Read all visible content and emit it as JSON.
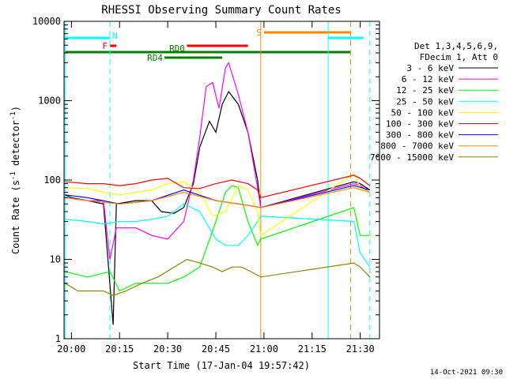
{
  "chart_data": {
    "type": "line",
    "title": "RHESSI Observing Summary Count Rates",
    "xlabel": "Start Time (17-Jan-04 19:57:42)",
    "ylabel": "Count Rate (s⁻¹ detector⁻¹)",
    "ylabel_base": "Count Rate (s",
    "ylabel_sup": "-1",
    "ylabel_mid": " detector",
    "ylabel_sup2": "-1",
    "ylabel_end": ")",
    "y_scale": "log",
    "ylim": [
      1,
      10000
    ],
    "xlim": [
      "19:57:42",
      "21:36:00"
    ],
    "x_ticks": [
      "20:00",
      "20:15",
      "20:30",
      "20:45",
      "21:00",
      "21:15",
      "21:30"
    ],
    "y_ticks": [
      "1",
      "10",
      "100",
      "1000",
      "10000"
    ],
    "legend_header": [
      "Det 1,3,4,5,6,9,",
      "FDecim 1, Att 0"
    ],
    "series": [
      {
        "name": "3 - 6 keV",
        "color": "#000000",
        "x": [
          "19:58",
          "20:00",
          "20:05",
          "20:10",
          "20:13",
          "20:14",
          "20:20",
          "20:25",
          "20:28",
          "20:32",
          "20:35",
          "20:38",
          "20:40",
          "20:43",
          "20:45",
          "20:47",
          "20:49",
          "20:52",
          "20:55",
          "20:58",
          "20:59",
          "21:28",
          "21:30",
          "21:33"
        ],
        "y": [
          65,
          60,
          55,
          50,
          1.5,
          50,
          55,
          55,
          40,
          38,
          45,
          90,
          260,
          550,
          400,
          900,
          1300,
          900,
          400,
          100,
          45,
          95,
          90,
          75
        ]
      },
      {
        "name": "6 - 12 keV",
        "color": "#ff00ff",
        "x": [
          "19:58",
          "20:05",
          "20:10",
          "20:12",
          "20:14",
          "20:20",
          "20:25",
          "20:30",
          "20:35",
          "20:38",
          "20:40",
          "20:42",
          "20:44",
          "20:46",
          "20:48",
          "20:49",
          "20:52",
          "20:55",
          "20:58",
          "20:59",
          "21:28",
          "21:30",
          "21:33"
        ],
        "y": [
          60,
          55,
          55,
          10,
          25,
          25,
          20,
          18,
          30,
          100,
          350,
          1500,
          1700,
          800,
          2600,
          3000,
          1200,
          400,
          80,
          45,
          90,
          85,
          70
        ]
      },
      {
        "name": "12 - 25 keV",
        "color": "#00ff00",
        "x": [
          "19:58",
          "20:05",
          "20:12",
          "20:15",
          "20:20",
          "20:25",
          "20:30",
          "20:35",
          "20:40",
          "20:45",
          "20:48",
          "20:50",
          "20:52",
          "20:55",
          "20:58",
          "20:59",
          "21:28",
          "21:30",
          "21:33"
        ],
        "y": [
          7,
          6,
          7,
          4,
          5,
          5,
          5,
          6,
          8,
          30,
          70,
          85,
          80,
          30,
          15,
          18,
          45,
          20,
          20
        ]
      },
      {
        "name": "25 - 50 keV",
        "color": "#00ffff",
        "x": [
          "19:58",
          "20:05",
          "20:10",
          "20:15",
          "20:20",
          "20:25",
          "20:30",
          "20:35",
          "20:40",
          "20:45",
          "20:48",
          "20:52",
          "20:55",
          "20:58",
          "20:59",
          "21:28",
          "21:30",
          "21:33"
        ],
        "y": [
          32,
          30,
          28,
          30,
          30,
          32,
          35,
          50,
          40,
          18,
          15,
          15,
          20,
          30,
          35,
          30,
          12,
          8
        ]
      },
      {
        "name": "50 - 100 keV",
        "color": "#ffff00",
        "x": [
          "19:58",
          "20:05",
          "20:10",
          "20:15",
          "20:20",
          "20:25",
          "20:30",
          "20:35",
          "20:40",
          "20:44",
          "20:48",
          "20:52",
          "20:55",
          "20:58",
          "20:59",
          "21:28",
          "21:30",
          "21:33"
        ],
        "y": [
          80,
          78,
          70,
          65,
          70,
          75,
          90,
          95,
          70,
          35,
          40,
          85,
          75,
          40,
          20,
          120,
          80,
          70
        ]
      },
      {
        "name": "100 - 300 keV",
        "color": "#ff0000",
        "x": [
          "19:58",
          "20:05",
          "20:10",
          "20:15",
          "20:20",
          "20:25",
          "20:30",
          "20:35",
          "20:40",
          "20:45",
          "20:50",
          "20:55",
          "20:58",
          "20:59",
          "21:28",
          "21:30",
          "21:33"
        ],
        "y": [
          95,
          90,
          90,
          85,
          90,
          100,
          105,
          80,
          78,
          90,
          100,
          90,
          75,
          60,
          115,
          105,
          85
        ]
      },
      {
        "name": "300 - 800 keV",
        "color": "#0000ff",
        "x": [
          "19:58",
          "20:05",
          "20:15",
          "20:25",
          "20:35",
          "20:45",
          "20:55",
          "20:59",
          "21:28",
          "21:33"
        ],
        "y": [
          65,
          60,
          50,
          55,
          75,
          55,
          48,
          45,
          85,
          75
        ]
      },
      {
        "name": "800 - 7000 keV",
        "color": "#ff8800",
        "x": [
          "19:58",
          "20:05",
          "20:15",
          "20:25",
          "20:35",
          "20:45",
          "20:55",
          "20:59",
          "21:28",
          "21:33"
        ],
        "y": [
          60,
          55,
          50,
          55,
          70,
          55,
          48,
          45,
          80,
          70
        ]
      },
      {
        "name": "7000 - 15000 keV",
        "color": "#888800",
        "x": [
          "19:58",
          "20:02",
          "20:06",
          "20:10",
          "20:13",
          "20:17",
          "20:22",
          "20:27",
          "20:32",
          "20:36",
          "20:40",
          "20:44",
          "20:47",
          "20:50",
          "20:53",
          "20:56",
          "20:59",
          "21:28",
          "21:30",
          "21:33"
        ],
        "y": [
          5,
          4,
          4,
          4,
          3.5,
          4,
          5,
          6,
          8,
          10,
          9,
          8,
          7,
          8,
          8,
          7,
          6,
          9,
          8,
          6
        ]
      }
    ],
    "flags": [
      {
        "label": "N",
        "color": "#00ffff",
        "start": "19:58",
        "end": "20:12"
      },
      {
        "label": "N",
        "color": "#00ffff",
        "start": "21:20",
        "end": "21:31"
      },
      {
        "label": "F",
        "color": "#ff0000",
        "start": "20:12",
        "end": "20:14"
      },
      {
        "label": "RD0",
        "color": "#ff0000",
        "start": "20:36",
        "end": "20:55"
      },
      {
        "label": "S",
        "color": "#ff8800",
        "start": "21:00",
        "end": "21:27"
      },
      {
        "label": "RD0",
        "color": "#008000",
        "start": "19:58",
        "end": "21:27"
      },
      {
        "label": "RD4",
        "color": "#008000",
        "start": "20:29",
        "end": "20:47"
      }
    ],
    "vertical_markers": [
      {
        "time": "19:58",
        "color": "#00ffff",
        "style": "solid"
      },
      {
        "time": "20:12",
        "color": "#00ffff",
        "style": "dashed"
      },
      {
        "time": "20:59",
        "color": "#ff8800",
        "style": "solid"
      },
      {
        "time": "21:20",
        "color": "#00ffff",
        "style": "solid"
      },
      {
        "time": "21:27",
        "color": "#ff8800",
        "style": "dashed"
      },
      {
        "time": "21:33",
        "color": "#00ffff",
        "style": "dashed"
      }
    ],
    "grid": false,
    "legend_placement": "right"
  },
  "footer": {
    "stamp": "14-Oct-2021 09:30"
  }
}
